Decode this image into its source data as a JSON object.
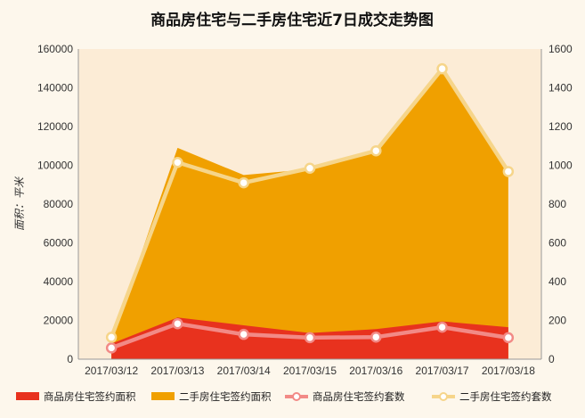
{
  "chart_data": {
    "type": "area",
    "title": "商品房住宅与二手房住宅近7日成交走势图",
    "ylabel": "面积：平米",
    "y2label": "",
    "categories": [
      "2017/03/12",
      "2017/03/13",
      "2017/03/14",
      "2017/03/15",
      "2017/03/16",
      "2017/03/17",
      "2017/03/18"
    ],
    "ylim": [
      0,
      160000
    ],
    "y2lim": [
      0,
      1600
    ],
    "yticks": [
      "0",
      "20000",
      "40000",
      "60000",
      "80000",
      "100000",
      "120000",
      "140000",
      "160000"
    ],
    "y2ticks": [
      "0",
      "200",
      "400",
      "600",
      "800",
      "1000",
      "1200",
      "1400",
      "1600"
    ],
    "grid": false,
    "legend_placement": "bottom",
    "series": [
      {
        "name": "商品房住宅签约面积",
        "kind": "area",
        "axis": "left",
        "color": "#e8321e",
        "values": [
          8000,
          21500,
          17500,
          13500,
          15500,
          19500,
          16500
        ]
      },
      {
        "name": "二手房住宅签约面积",
        "kind": "area",
        "axis": "left",
        "color": "#f0a000",
        "values": [
          10000,
          109000,
          95000,
          98000,
          107000,
          149000,
          96000
        ]
      },
      {
        "name": "商品房住宅签约套数",
        "kind": "line",
        "axis": "right",
        "color": "#f28a86",
        "values": [
          58,
          183,
          128,
          111,
          114,
          165,
          111
        ]
      },
      {
        "name": "二手房住宅签约套数",
        "kind": "line",
        "axis": "right",
        "color": "#f6d58a",
        "values": [
          113,
          1015,
          910,
          985,
          1075,
          1498,
          968
        ]
      }
    ]
  }
}
